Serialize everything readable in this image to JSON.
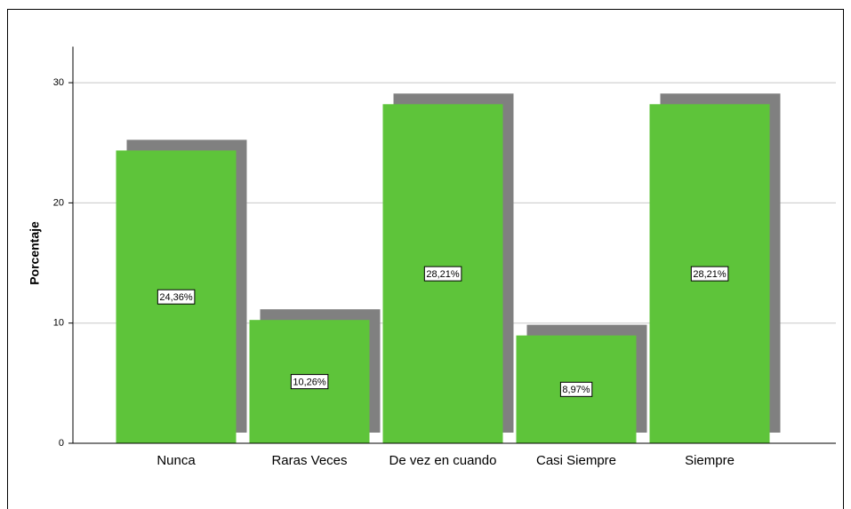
{
  "chart_data": {
    "type": "bar",
    "y_label": "Porcentaje",
    "categories": [
      "Nunca",
      "Raras Veces",
      "De vez en cuando",
      "Casi Siempre",
      "Siempre"
    ],
    "values": [
      24.36,
      10.26,
      28.21,
      8.97,
      28.21
    ],
    "value_labels": [
      "24,36%",
      "10,26%",
      "28,21%",
      "8,97%",
      "28,21%"
    ],
    "color": "#5ec43a",
    "shadow_color": "#808080",
    "ylim": [
      0,
      33
    ],
    "yticks": [
      0,
      10,
      20,
      30
    ],
    "grid": true
  }
}
